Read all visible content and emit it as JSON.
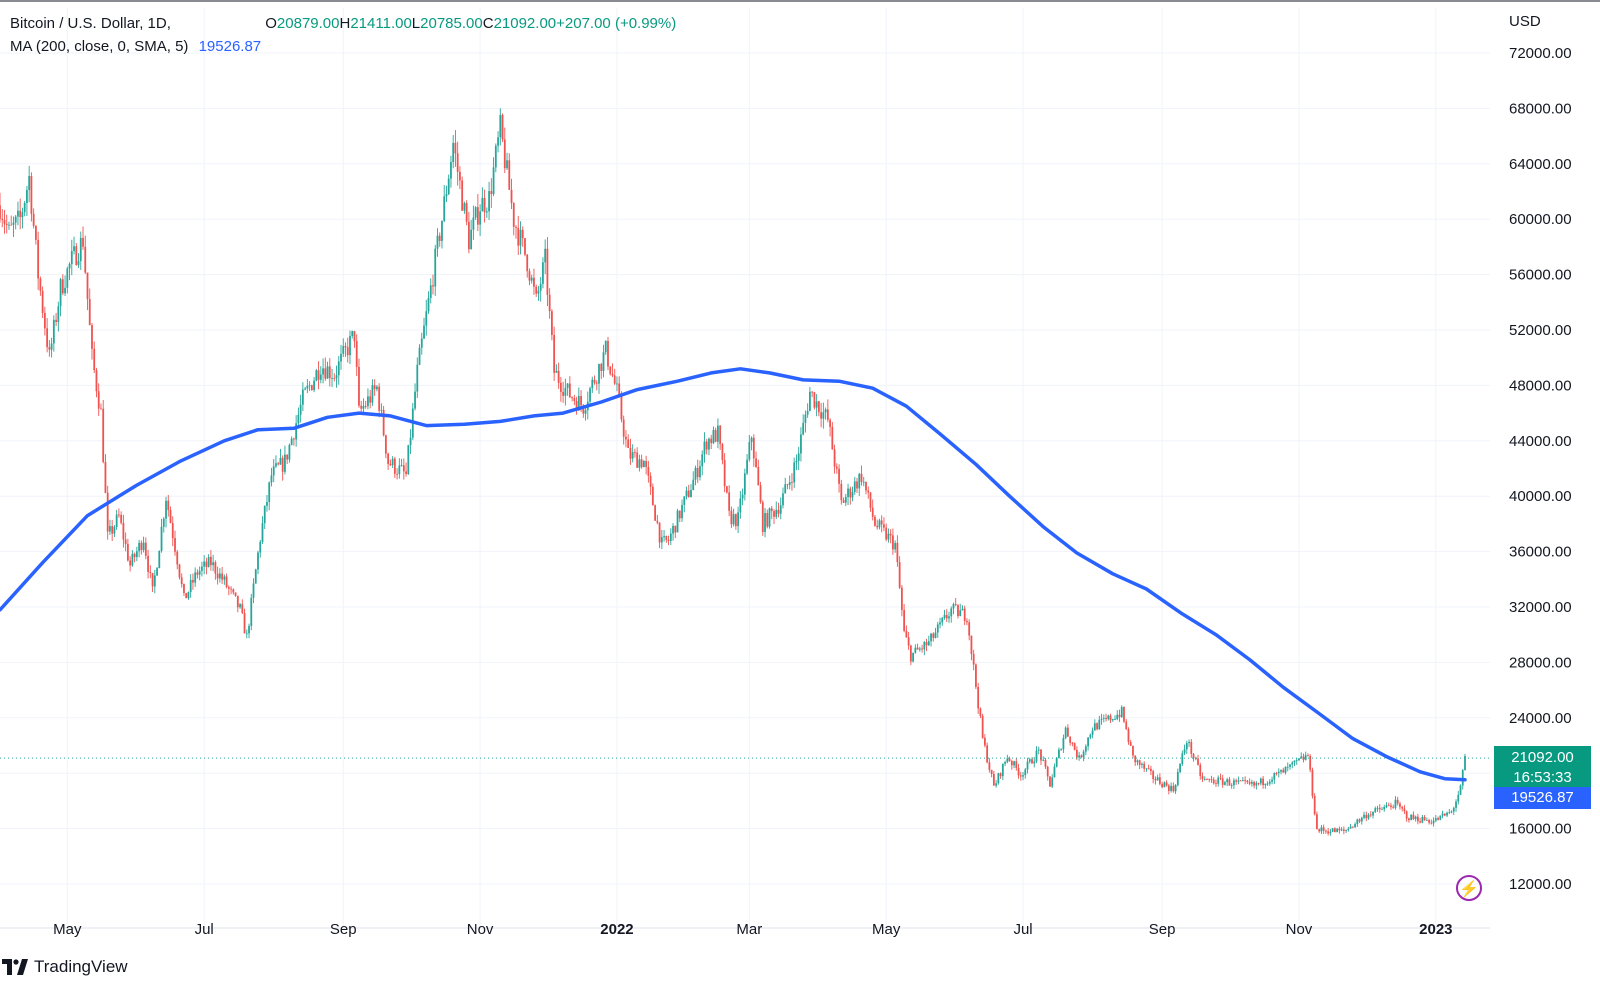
{
  "header": {
    "symbol": "Bitcoin / U.S. Dollar, 1D,",
    "open_label": "O",
    "open": "20879.00",
    "high_label": "H",
    "high": "21411.00",
    "low_label": "L",
    "low": "20785.00",
    "close_label": "C",
    "close": "21092.00",
    "change": "+207.00 (+0.99%)",
    "ma_label": "MA (200, close, 0, SMA, 5)",
    "ma_value": "19526.87"
  },
  "price_axis": {
    "currency": "USD"
  },
  "badges": {
    "last_price": "21092.00",
    "countdown": "16:53:33",
    "ma_price": "19526.87"
  },
  "brand": {
    "name": "TradingView"
  },
  "colors": {
    "up": "#26a69a",
    "down": "#ef5350",
    "ma": "#2962ff",
    "last_badge": "#089981",
    "ma_badge": "#2962ff",
    "grid": "#f0f3fa"
  },
  "chart_data": {
    "type": "candlestick",
    "title": "Bitcoin / U.S. Dollar, 1D",
    "ylabel": "USD",
    "ylim": [
      10000,
      74000
    ],
    "y_ticks": [
      12000,
      16000,
      20000,
      24000,
      28000,
      32000,
      36000,
      40000,
      44000,
      48000,
      52000,
      56000,
      60000,
      64000,
      68000,
      72000
    ],
    "y_tick_labels": [
      "12000.00",
      "16000.00",
      "",
      "24000.00",
      "28000.00",
      "32000.00",
      "36000.00",
      "40000.00",
      "44000.00",
      "48000.00",
      "52000.00",
      "56000.00",
      "60000.00",
      "64000.00",
      "68000.00",
      "72000.00"
    ],
    "x_ticks": [
      {
        "date": "2021-05-01",
        "label": "May",
        "bold": false
      },
      {
        "date": "2021-07-01",
        "label": "Jul",
        "bold": false
      },
      {
        "date": "2021-09-01",
        "label": "Sep",
        "bold": false
      },
      {
        "date": "2021-11-01",
        "label": "Nov",
        "bold": false
      },
      {
        "date": "2022-01-01",
        "label": "2022",
        "bold": true
      },
      {
        "date": "2022-03-01",
        "label": "Mar",
        "bold": false
      },
      {
        "date": "2022-05-01",
        "label": "May",
        "bold": false
      },
      {
        "date": "2022-07-01",
        "label": "Jul",
        "bold": false
      },
      {
        "date": "2022-09-01",
        "label": "Sep",
        "bold": false
      },
      {
        "date": "2022-11-01",
        "label": "Nov",
        "bold": false
      },
      {
        "date": "2023-01-01",
        "label": "2023",
        "bold": true
      }
    ],
    "x_range": [
      "2021-04-01",
      "2023-01-14"
    ],
    "price_path": [
      {
        "date": "2021-04-01",
        "close": 61000
      },
      {
        "date": "2021-04-05",
        "close": 59000
      },
      {
        "date": "2021-04-10",
        "close": 60000
      },
      {
        "date": "2021-04-14",
        "close": 63000
      },
      {
        "date": "2021-04-18",
        "close": 56000
      },
      {
        "date": "2021-04-23",
        "close": 50000
      },
      {
        "date": "2021-04-28",
        "close": 55000
      },
      {
        "date": "2021-05-03",
        "close": 57000
      },
      {
        "date": "2021-05-08",
        "close": 58500
      },
      {
        "date": "2021-05-12",
        "close": 50000
      },
      {
        "date": "2021-05-16",
        "close": 46000
      },
      {
        "date": "2021-05-19",
        "close": 37000
      },
      {
        "date": "2021-05-24",
        "close": 38500
      },
      {
        "date": "2021-05-29",
        "close": 35000
      },
      {
        "date": "2021-06-04",
        "close": 37000
      },
      {
        "date": "2021-06-08",
        "close": 33000
      },
      {
        "date": "2021-06-14",
        "close": 40000
      },
      {
        "date": "2021-06-19",
        "close": 35500
      },
      {
        "date": "2021-06-22",
        "close": 32500
      },
      {
        "date": "2021-06-28",
        "close": 34500
      },
      {
        "date": "2021-07-04",
        "close": 35200
      },
      {
        "date": "2021-07-10",
        "close": 33800
      },
      {
        "date": "2021-07-17",
        "close": 31800
      },
      {
        "date": "2021-07-20",
        "close": 29800
      },
      {
        "date": "2021-07-26",
        "close": 37000
      },
      {
        "date": "2021-07-31",
        "close": 41500
      },
      {
        "date": "2021-08-06",
        "close": 42500
      },
      {
        "date": "2021-08-14",
        "close": 47000
      },
      {
        "date": "2021-08-22",
        "close": 49500
      },
      {
        "date": "2021-08-28",
        "close": 48800
      },
      {
        "date": "2021-09-06",
        "close": 51700
      },
      {
        "date": "2021-09-08",
        "close": 46000
      },
      {
        "date": "2021-09-16",
        "close": 47800
      },
      {
        "date": "2021-09-21",
        "close": 42500
      },
      {
        "date": "2021-09-29",
        "close": 41500
      },
      {
        "date": "2021-10-04",
        "close": 49000
      },
      {
        "date": "2021-10-10",
        "close": 55000
      },
      {
        "date": "2021-10-15",
        "close": 60000
      },
      {
        "date": "2021-10-20",
        "close": 65500
      },
      {
        "date": "2021-10-27",
        "close": 58500
      },
      {
        "date": "2021-11-01",
        "close": 61000
      },
      {
        "date": "2021-11-05",
        "close": 61500
      },
      {
        "date": "2021-11-10",
        "close": 66500
      },
      {
        "date": "2021-11-16",
        "close": 60000
      },
      {
        "date": "2021-11-22",
        "close": 57000
      },
      {
        "date": "2021-11-26",
        "close": 54000
      },
      {
        "date": "2021-11-30",
        "close": 57000
      },
      {
        "date": "2021-12-04",
        "close": 49000
      },
      {
        "date": "2021-12-10",
        "close": 47500
      },
      {
        "date": "2021-12-17",
        "close": 46500
      },
      {
        "date": "2021-12-27",
        "close": 50500
      },
      {
        "date": "2022-01-01",
        "close": 47500
      },
      {
        "date": "2022-01-06",
        "close": 43000
      },
      {
        "date": "2022-01-13",
        "close": 42500
      },
      {
        "date": "2022-01-21",
        "close": 36500
      },
      {
        "date": "2022-01-24",
        "close": 36800
      },
      {
        "date": "2022-02-05",
        "close": 41500
      },
      {
        "date": "2022-02-10",
        "close": 44000
      },
      {
        "date": "2022-02-15",
        "close": 44500
      },
      {
        "date": "2022-02-20",
        "close": 38500
      },
      {
        "date": "2022-02-24",
        "close": 38300
      },
      {
        "date": "2022-03-02",
        "close": 44400
      },
      {
        "date": "2022-03-07",
        "close": 38000
      },
      {
        "date": "2022-03-15",
        "close": 39500
      },
      {
        "date": "2022-03-22",
        "close": 42500
      },
      {
        "date": "2022-03-28",
        "close": 47500
      },
      {
        "date": "2022-04-05",
        "close": 45500
      },
      {
        "date": "2022-04-11",
        "close": 39500
      },
      {
        "date": "2022-04-20",
        "close": 41500
      },
      {
        "date": "2022-04-26",
        "close": 38000
      },
      {
        "date": "2022-05-05",
        "close": 36500
      },
      {
        "date": "2022-05-09",
        "close": 30100
      },
      {
        "date": "2022-05-12",
        "close": 28500
      },
      {
        "date": "2022-05-20",
        "close": 29400
      },
      {
        "date": "2022-05-30",
        "close": 31800
      },
      {
        "date": "2022-06-06",
        "close": 31400
      },
      {
        "date": "2022-06-13",
        "close": 22500
      },
      {
        "date": "2022-06-18",
        "close": 19000
      },
      {
        "date": "2022-06-24",
        "close": 21200
      },
      {
        "date": "2022-06-30",
        "close": 19900
      },
      {
        "date": "2022-07-08",
        "close": 21600
      },
      {
        "date": "2022-07-13",
        "close": 19200
      },
      {
        "date": "2022-07-20",
        "close": 23200
      },
      {
        "date": "2022-07-26",
        "close": 21000
      },
      {
        "date": "2022-08-01",
        "close": 23300
      },
      {
        "date": "2022-08-14",
        "close": 24400
      },
      {
        "date": "2022-08-19",
        "close": 21100
      },
      {
        "date": "2022-08-28",
        "close": 19700
      },
      {
        "date": "2022-09-06",
        "close": 18800
      },
      {
        "date": "2022-09-12",
        "close": 22400
      },
      {
        "date": "2022-09-19",
        "close": 19500
      },
      {
        "date": "2022-09-28",
        "close": 19400
      },
      {
        "date": "2022-10-12",
        "close": 19100
      },
      {
        "date": "2022-10-25",
        "close": 20100
      },
      {
        "date": "2022-11-05",
        "close": 21300
      },
      {
        "date": "2022-11-09",
        "close": 15900
      },
      {
        "date": "2022-11-21",
        "close": 15800
      },
      {
        "date": "2022-12-01",
        "close": 17000
      },
      {
        "date": "2022-12-14",
        "close": 17800
      },
      {
        "date": "2022-12-20",
        "close": 16800
      },
      {
        "date": "2022-12-31",
        "close": 16550
      },
      {
        "date": "2023-01-08",
        "close": 17200
      },
      {
        "date": "2023-01-12",
        "close": 18850
      },
      {
        "date": "2023-01-14",
        "close": 21092
      }
    ],
    "series": [
      {
        "name": "MA (200, close, 0, SMA, 5)",
        "points": [
          {
            "date": "2021-04-01",
            "value": 31800
          },
          {
            "date": "2021-04-20",
            "value": 35200
          },
          {
            "date": "2021-05-10",
            "value": 38600
          },
          {
            "date": "2021-06-01",
            "value": 40800
          },
          {
            "date": "2021-06-20",
            "value": 42500
          },
          {
            "date": "2021-07-10",
            "value": 44000
          },
          {
            "date": "2021-07-25",
            "value": 44800
          },
          {
            "date": "2021-08-10",
            "value": 44900
          },
          {
            "date": "2021-08-25",
            "value": 45700
          },
          {
            "date": "2021-09-08",
            "value": 46000
          },
          {
            "date": "2021-09-22",
            "value": 45800
          },
          {
            "date": "2021-10-08",
            "value": 45100
          },
          {
            "date": "2021-10-25",
            "value": 45200
          },
          {
            "date": "2021-11-10",
            "value": 45400
          },
          {
            "date": "2021-11-25",
            "value": 45800
          },
          {
            "date": "2021-12-08",
            "value": 46000
          },
          {
            "date": "2021-12-25",
            "value": 46800
          },
          {
            "date": "2022-01-10",
            "value": 47700
          },
          {
            "date": "2022-01-28",
            "value": 48300
          },
          {
            "date": "2022-02-12",
            "value": 48900
          },
          {
            "date": "2022-02-25",
            "value": 49200
          },
          {
            "date": "2022-03-10",
            "value": 48900
          },
          {
            "date": "2022-03-25",
            "value": 48400
          },
          {
            "date": "2022-04-10",
            "value": 48300
          },
          {
            "date": "2022-04-25",
            "value": 47800
          },
          {
            "date": "2022-05-10",
            "value": 46500
          },
          {
            "date": "2022-05-25",
            "value": 44500
          },
          {
            "date": "2022-06-10",
            "value": 42300
          },
          {
            "date": "2022-06-25",
            "value": 40000
          },
          {
            "date": "2022-07-10",
            "value": 37800
          },
          {
            "date": "2022-07-25",
            "value": 35900
          },
          {
            "date": "2022-08-10",
            "value": 34400
          },
          {
            "date": "2022-08-25",
            "value": 33300
          },
          {
            "date": "2022-09-10",
            "value": 31500
          },
          {
            "date": "2022-09-25",
            "value": 30000
          },
          {
            "date": "2022-10-10",
            "value": 28200
          },
          {
            "date": "2022-10-25",
            "value": 26200
          },
          {
            "date": "2022-11-10",
            "value": 24300
          },
          {
            "date": "2022-11-25",
            "value": 22500
          },
          {
            "date": "2022-12-10",
            "value": 21200
          },
          {
            "date": "2022-12-25",
            "value": 20100
          },
          {
            "date": "2023-01-05",
            "value": 19600
          },
          {
            "date": "2023-01-14",
            "value": 19527
          }
        ]
      }
    ],
    "last_price": 21092,
    "ma_last": 19526.87,
    "grid": true
  }
}
